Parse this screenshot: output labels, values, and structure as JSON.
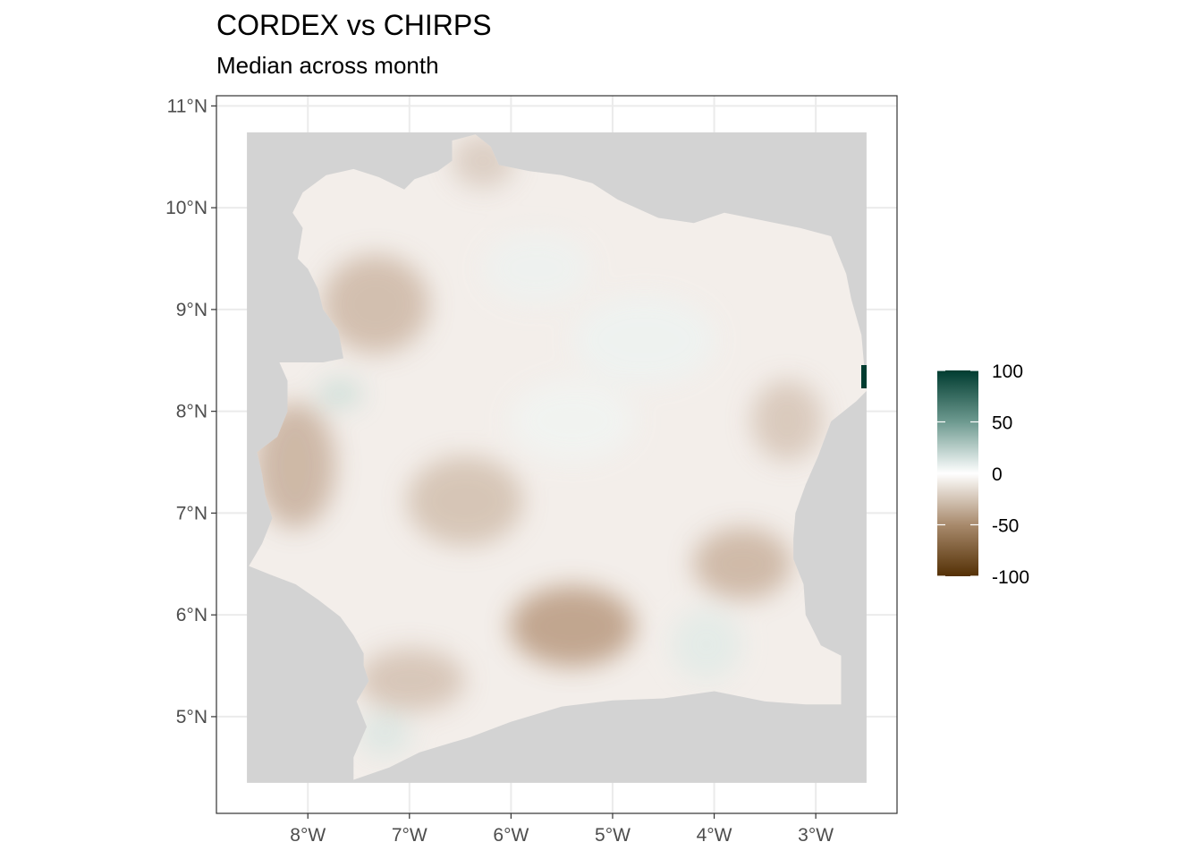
{
  "title": "CORDEX vs CHIRPS",
  "subtitle": "Median across month",
  "map": {
    "x_axis": {
      "ticks": [
        {
          "value": -8,
          "label": "8°W"
        },
        {
          "value": -7,
          "label": "7°W"
        },
        {
          "value": -6,
          "label": "6°W"
        },
        {
          "value": -5,
          "label": "5°W"
        },
        {
          "value": -4,
          "label": "4°W"
        },
        {
          "value": -3,
          "label": "3°W"
        }
      ],
      "range": [
        -8.9,
        -2.2
      ]
    },
    "y_axis": {
      "ticks": [
        {
          "value": 5,
          "label": "5°N"
        },
        {
          "value": 6,
          "label": "6°N"
        },
        {
          "value": 7,
          "label": "7°N"
        },
        {
          "value": 8,
          "label": "8°N"
        },
        {
          "value": 9,
          "label": "9°N"
        },
        {
          "value": 10,
          "label": "10°N"
        },
        {
          "value": 11,
          "label": "11°N"
        }
      ],
      "range": [
        4.05,
        11.1
      ]
    },
    "raster_extent": {
      "lon": [
        -8.6,
        -2.5
      ],
      "lat": [
        4.35,
        10.74
      ]
    },
    "country_outline": [
      [
        -7.55,
        4.38
      ],
      [
        -7.55,
        4.6
      ],
      [
        -7.42,
        4.9
      ],
      [
        -7.52,
        5.15
      ],
      [
        -7.4,
        5.35
      ],
      [
        -7.45,
        5.5
      ],
      [
        -7.45,
        5.62
      ],
      [
        -7.55,
        5.8
      ],
      [
        -7.68,
        5.98
      ],
      [
        -7.9,
        6.15
      ],
      [
        -8.12,
        6.3
      ],
      [
        -8.38,
        6.4
      ],
      [
        -8.58,
        6.48
      ],
      [
        -8.45,
        6.7
      ],
      [
        -8.35,
        6.95
      ],
      [
        -8.42,
        7.18
      ],
      [
        -8.45,
        7.38
      ],
      [
        -8.5,
        7.6
      ],
      [
        -8.3,
        7.75
      ],
      [
        -8.2,
        8.0
      ],
      [
        -8.2,
        8.3
      ],
      [
        -8.28,
        8.48
      ],
      [
        -7.85,
        8.48
      ],
      [
        -7.65,
        8.52
      ],
      [
        -7.7,
        8.8
      ],
      [
        -7.85,
        9.0
      ],
      [
        -7.9,
        9.2
      ],
      [
        -8.0,
        9.4
      ],
      [
        -8.1,
        9.5
      ],
      [
        -8.05,
        9.8
      ],
      [
        -8.15,
        9.95
      ],
      [
        -8.05,
        10.15
      ],
      [
        -7.82,
        10.32
      ],
      [
        -7.55,
        10.38
      ],
      [
        -7.3,
        10.3
      ],
      [
        -7.05,
        10.18
      ],
      [
        -6.95,
        10.28
      ],
      [
        -6.72,
        10.36
      ],
      [
        -6.58,
        10.46
      ],
      [
        -6.58,
        10.66
      ],
      [
        -6.35,
        10.72
      ],
      [
        -6.2,
        10.6
      ],
      [
        -6.12,
        10.42
      ],
      [
        -5.82,
        10.36
      ],
      [
        -5.5,
        10.32
      ],
      [
        -5.2,
        10.24
      ],
      [
        -4.95,
        10.08
      ],
      [
        -4.55,
        9.9
      ],
      [
        -4.2,
        9.85
      ],
      [
        -3.9,
        9.95
      ],
      [
        -3.55,
        9.88
      ],
      [
        -3.15,
        9.8
      ],
      [
        -2.85,
        9.72
      ],
      [
        -2.7,
        9.35
      ],
      [
        -2.65,
        9.1
      ],
      [
        -2.55,
        8.75
      ],
      [
        -2.52,
        8.4
      ],
      [
        -2.5,
        8.2
      ],
      [
        -2.6,
        8.1
      ],
      [
        -2.85,
        7.9
      ],
      [
        -2.98,
        7.55
      ],
      [
        -3.1,
        7.28
      ],
      [
        -3.2,
        7.0
      ],
      [
        -3.22,
        6.75
      ],
      [
        -3.22,
        6.55
      ],
      [
        -3.12,
        6.3
      ],
      [
        -3.1,
        6.0
      ],
      [
        -2.95,
        5.7
      ],
      [
        -2.75,
        5.6
      ],
      [
        -2.75,
        5.4
      ],
      [
        -2.75,
        5.12
      ],
      [
        -3.1,
        5.12
      ],
      [
        -3.5,
        5.15
      ],
      [
        -4.0,
        5.25
      ],
      [
        -4.5,
        5.18
      ],
      [
        -5.0,
        5.16
      ],
      [
        -5.5,
        5.1
      ],
      [
        -6.0,
        4.95
      ],
      [
        -6.4,
        4.8
      ],
      [
        -6.9,
        4.65
      ],
      [
        -7.2,
        4.5
      ],
      [
        -7.55,
        4.38
      ]
    ],
    "background_color": "#d3d3d3"
  },
  "legend": {
    "ticks": [
      {
        "value": 100,
        "label": "100"
      },
      {
        "value": 50,
        "label": "50"
      },
      {
        "value": 0,
        "label": "0"
      },
      {
        "value": -50,
        "label": "-50"
      },
      {
        "value": -100,
        "label": "-100"
      }
    ],
    "range": [
      -100,
      100
    ],
    "colors": {
      "low": "#543005",
      "mid": "#ffffff",
      "high": "#003c30"
    }
  }
}
